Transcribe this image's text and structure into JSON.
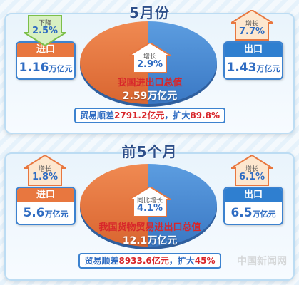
{
  "sections": [
    {
      "title": "5月份",
      "import": {
        "label": "进口",
        "value": "1.16",
        "unit": "万亿元",
        "change_label": "下降",
        "change": "2.5%",
        "direction": "down"
      },
      "export": {
        "label": "出口",
        "value": "1.43",
        "unit": "万亿元",
        "change_label": "增长",
        "change": "7.7%",
        "direction": "up"
      },
      "total": {
        "change_label": "增长",
        "change": "2.9%",
        "line1": "我国进出口总值",
        "line2": "2.59万亿元"
      },
      "surplus": {
        "prefix": "贸易顺差",
        "amount": "2791.2亿元",
        "suffix": "，扩大",
        "growth": "89.8%"
      }
    },
    {
      "title": "前5个月",
      "import": {
        "label": "进口",
        "value": "5.6",
        "unit": "万亿元",
        "change_label": "增长",
        "change": "1.8%",
        "direction": "up"
      },
      "export": {
        "label": "出口",
        "value": "6.5",
        "unit": "万亿元",
        "change_label": "增长",
        "change": "6.1%",
        "direction": "up"
      },
      "total": {
        "change_label": "同比增长",
        "change": "4.1%",
        "line1": "我国货物贸易进出口总值",
        "line2": "12.1万亿元"
      },
      "surplus": {
        "prefix": "贸易顺差",
        "amount": "8933.6亿元",
        "suffix": "，扩大",
        "growth": "45%"
      }
    }
  ],
  "colors": {
    "import": "#e8773f",
    "export": "#4e8fd6",
    "accent_red": "#d8262a",
    "frame_blue": "#3c82cf"
  },
  "watermark": "中国新闻网"
}
